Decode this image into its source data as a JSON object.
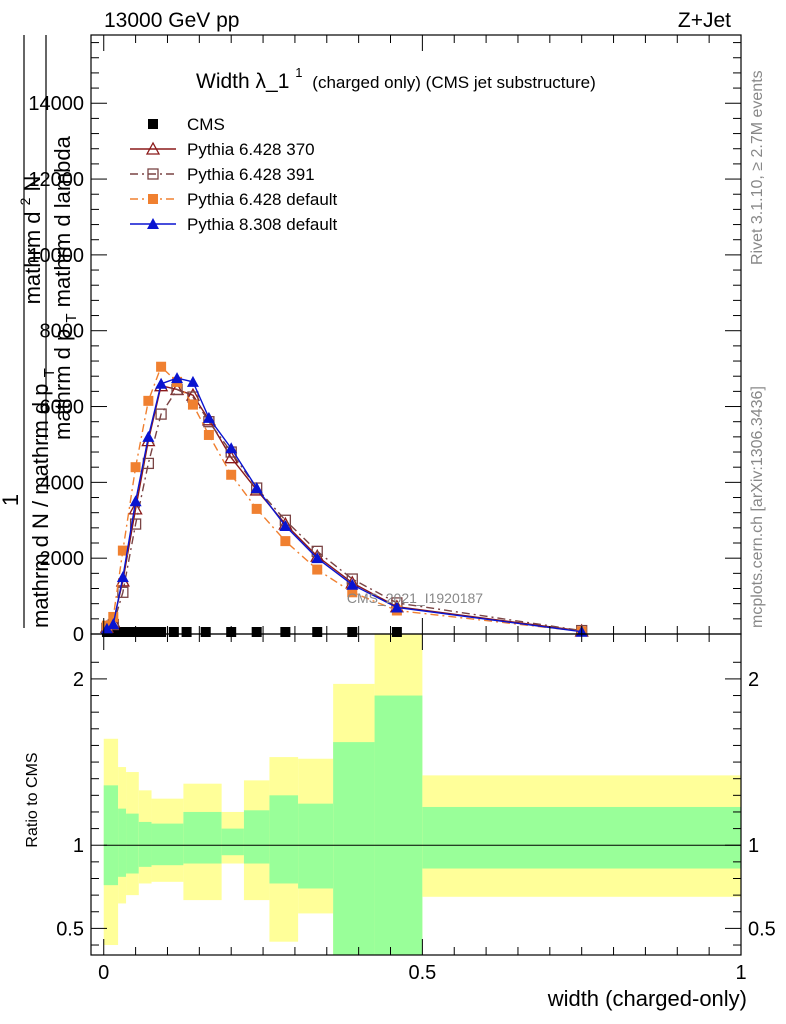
{
  "header": {
    "left": "13000 GeV pp",
    "right": "Z+Jet"
  },
  "title": {
    "main": "Width λ_1",
    "sup": "1",
    "sub": "(charged only) (CMS jet substructure)"
  },
  "side": {
    "rivet": "Rivet 3.1.10, ≥ 2.7M events",
    "mcplots": "mcplots.cern.ch [arXiv:1306.3436]"
  },
  "analysis_label": "CMS_2021_I1920187",
  "ylabel_top": {
    "numerator": "1",
    "denominator_line1": "mathrm d N / mathrm d p",
    "denominator_line1_sub": "T",
    "denominator_line2": "mathrm d N",
    "numerator2": "mathrm d",
    "numerator2_sup": "2",
    "numerator2_rest": "N",
    "denominator2": "mathrm d p",
    "denominator2_sub": "T",
    "denominator2_rest": " mathrm d lambda"
  },
  "ylabel_ratio": "Ratio to CMS",
  "xlabel": "width (charged-only)",
  "chart_data": [
    {
      "type": "line",
      "panel": "main",
      "xlim": [
        -0.02,
        1.0
      ],
      "ylim": [
        0,
        15800
      ],
      "yticks": [
        {
          "v": 0,
          "label": "0"
        },
        {
          "v": 2000,
          "label": "2000"
        },
        {
          "v": 4000,
          "label": "4000"
        },
        {
          "v": 6000,
          "label": "6000"
        },
        {
          "v": 8000,
          "label": "8000"
        },
        {
          "v": 10000,
          "label": "10000"
        },
        {
          "v": 12000,
          "label": "12000"
        },
        {
          "v": 14000,
          "label": "14000"
        }
      ],
      "legend_position": "top-left",
      "series": [
        {
          "name": "CMS",
          "color": "#000000",
          "marker": "square",
          "line": "none",
          "x": [
            0.005,
            0.015,
            0.025,
            0.035,
            0.045,
            0.06,
            0.075,
            0.09,
            0.11,
            0.13,
            0.16,
            0.2,
            0.24,
            0.285,
            0.335,
            0.39,
            0.46
          ],
          "y": [
            10,
            10,
            10,
            10,
            10,
            10,
            10,
            10,
            10,
            10,
            10,
            10,
            10,
            10,
            10,
            10,
            10
          ]
        },
        {
          "name": "Pythia 6.428 370",
          "color": "#8b1a1a",
          "marker": "triangle-open",
          "line": "solid",
          "x": [
            0.005,
            0.015,
            0.03,
            0.05,
            0.07,
            0.09,
            0.115,
            0.14,
            0.165,
            0.2,
            0.24,
            0.285,
            0.335,
            0.39,
            0.46,
            0.75
          ],
          "y": [
            180,
            320,
            1400,
            3300,
            5100,
            6550,
            6450,
            6300,
            5650,
            4650,
            3800,
            2900,
            2050,
            1350,
            720,
            80
          ]
        },
        {
          "name": "Pythia 6.428 391",
          "color": "#7a4444",
          "marker": "square-open",
          "line": "dashdot",
          "x": [
            0.005,
            0.015,
            0.03,
            0.05,
            0.07,
            0.09,
            0.115,
            0.14,
            0.165,
            0.2,
            0.24,
            0.285,
            0.335,
            0.39,
            0.46,
            0.75
          ],
          "y": [
            150,
            250,
            1100,
            2900,
            4500,
            5800,
            6450,
            6250,
            5600,
            4800,
            3850,
            3000,
            2180,
            1450,
            820,
            90
          ]
        },
        {
          "name": "Pythia 6.428 default",
          "color": "#f08030",
          "marker": "square",
          "line": "dashdot",
          "x": [
            0.005,
            0.015,
            0.03,
            0.05,
            0.07,
            0.09,
            0.115,
            0.14,
            0.165,
            0.2,
            0.24,
            0.285,
            0.335,
            0.39,
            0.46,
            0.75
          ],
          "y": [
            220,
            450,
            2200,
            4400,
            6150,
            7050,
            6650,
            6050,
            5250,
            4200,
            3300,
            2450,
            1700,
            1100,
            620,
            70
          ]
        },
        {
          "name": "Pythia 8.308 default",
          "color": "#0a14d0",
          "marker": "triangle",
          "line": "solid",
          "x": [
            0.005,
            0.015,
            0.03,
            0.05,
            0.07,
            0.09,
            0.115,
            0.14,
            0.165,
            0.2,
            0.24,
            0.285,
            0.335,
            0.39,
            0.46,
            0.75
          ],
          "y": [
            140,
            260,
            1500,
            3500,
            5200,
            6600,
            6750,
            6650,
            5700,
            4900,
            3850,
            2850,
            2000,
            1300,
            700,
            60
          ]
        }
      ]
    },
    {
      "type": "area",
      "panel": "ratio",
      "xlim": [
        -0.02,
        1.0
      ],
      "ylim": [
        0.34,
        2.27
      ],
      "yticks": [
        {
          "v": 0.5,
          "label": "0.5"
        },
        {
          "v": 1,
          "label": "1"
        },
        {
          "v": 2,
          "label": "2"
        }
      ],
      "xticks": [
        {
          "v": 0,
          "label": "0"
        },
        {
          "v": 0.5,
          "label": "0.5"
        },
        {
          "v": 1,
          "label": "1"
        }
      ],
      "bands": {
        "bins": [
          {
            "x0": 0.0,
            "x1": 0.0225,
            "outer": [
              0.4,
              1.64
            ],
            "inner": [
              0.76,
              1.36
            ]
          },
          {
            "x0": 0.0225,
            "x1": 0.035,
            "outer": [
              0.65,
              1.47
            ],
            "inner": [
              0.81,
              1.22
            ]
          },
          {
            "x0": 0.035,
            "x1": 0.055,
            "outer": [
              0.7,
              1.44
            ],
            "inner": [
              0.83,
              1.19
            ]
          },
          {
            "x0": 0.055,
            "x1": 0.075,
            "outer": [
              0.77,
              1.33
            ],
            "inner": [
              0.87,
              1.14
            ]
          },
          {
            "x0": 0.075,
            "x1": 0.125,
            "outer": [
              0.78,
              1.28
            ],
            "inner": [
              0.88,
              1.13
            ]
          },
          {
            "x0": 0.125,
            "x1": 0.185,
            "outer": [
              0.67,
              1.37
            ],
            "inner": [
              0.89,
              1.2
            ]
          },
          {
            "x0": 0.185,
            "x1": 0.22,
            "outer": [
              0.89,
              1.2
            ],
            "inner": [
              0.94,
              1.1
            ]
          },
          {
            "x0": 0.22,
            "x1": 0.26,
            "outer": [
              0.67,
              1.39
            ],
            "inner": [
              0.89,
              1.21
            ]
          },
          {
            "x0": 0.26,
            "x1": 0.305,
            "outer": [
              0.42,
              1.53
            ],
            "inner": [
              0.77,
              1.3
            ]
          },
          {
            "x0": 0.305,
            "x1": 0.36,
            "outer": [
              0.59,
              1.52
            ],
            "inner": [
              0.74,
              1.25
            ]
          },
          {
            "x0": 0.36,
            "x1": 0.425,
            "outer": [
              0.34,
              1.97
            ],
            "inner": [
              0.34,
              1.62
            ]
          },
          {
            "x0": 0.425,
            "x1": 0.5,
            "outer": [
              0.34,
              2.27
            ],
            "inner": [
              0.34,
              1.9
            ]
          },
          {
            "x0": 0.5,
            "x1": 1.0,
            "outer": [
              0.69,
              1.42
            ],
            "inner": [
              0.86,
              1.23
            ]
          }
        ],
        "outer_color": "#ffff99",
        "inner_color": "#99ff99"
      },
      "reference_line": 1
    }
  ]
}
